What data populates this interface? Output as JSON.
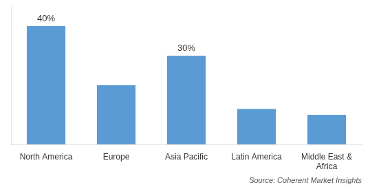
{
  "chart_data": {
    "type": "bar",
    "categories": [
      "North America",
      "Europe",
      "Asia Pacific",
      "Latin America",
      "Middle East &\nAfrica"
    ],
    "values": [
      40,
      20,
      30,
      12,
      10
    ],
    "value_labels": [
      "40%",
      null,
      "30%",
      null,
      null
    ],
    "data_labels": true,
    "color": "#5B9BD5",
    "ylim": [
      0,
      47
    ],
    "grid": false,
    "tick_labels": "x",
    "annotations": [
      "Source: Coherent Market Insights"
    ]
  }
}
